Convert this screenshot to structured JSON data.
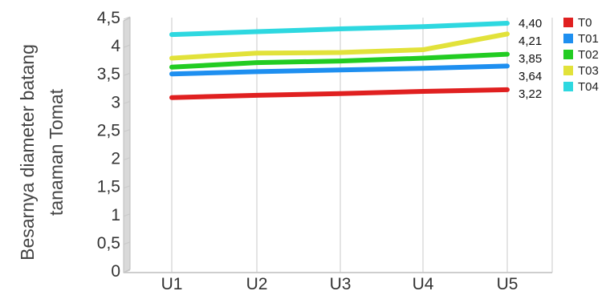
{
  "chart_data": {
    "type": "line",
    "title": "",
    "xlabel": "",
    "ylabel": "Besarnya  diameter batang tanaman Tomat",
    "ylabel_lines": [
      "Besarnya  diameter batang",
      "tanaman Tomat"
    ],
    "ylim": [
      0,
      4.5
    ],
    "y_ticks": [
      "0",
      "0,5",
      "1",
      "1,5",
      "2",
      "2,5",
      "3",
      "3,5",
      "4",
      "4,5"
    ],
    "categories": [
      "U1",
      "U2",
      "U3",
      "U4",
      "U5"
    ],
    "grid": true,
    "legend_position": "right",
    "series": [
      {
        "name": "T0",
        "color": "#e02020",
        "values": [
          3.08,
          3.12,
          3.15,
          3.19,
          3.22
        ],
        "end_label": "3,22"
      },
      {
        "name": "T01",
        "color": "#1e8ff0",
        "values": [
          3.5,
          3.54,
          3.57,
          3.6,
          3.64
        ],
        "end_label": "3,64"
      },
      {
        "name": "T02",
        "color": "#22cc22",
        "values": [
          3.62,
          3.7,
          3.73,
          3.78,
          3.85
        ],
        "end_label": "3,85"
      },
      {
        "name": "T03",
        "color": "#e2e23a",
        "values": [
          3.78,
          3.87,
          3.88,
          3.93,
          4.21
        ],
        "end_label": "4,21"
      },
      {
        "name": "T04",
        "color": "#2ed8e0",
        "values": [
          4.2,
          4.25,
          4.3,
          4.34,
          4.4
        ],
        "end_label": "4,40"
      }
    ]
  }
}
